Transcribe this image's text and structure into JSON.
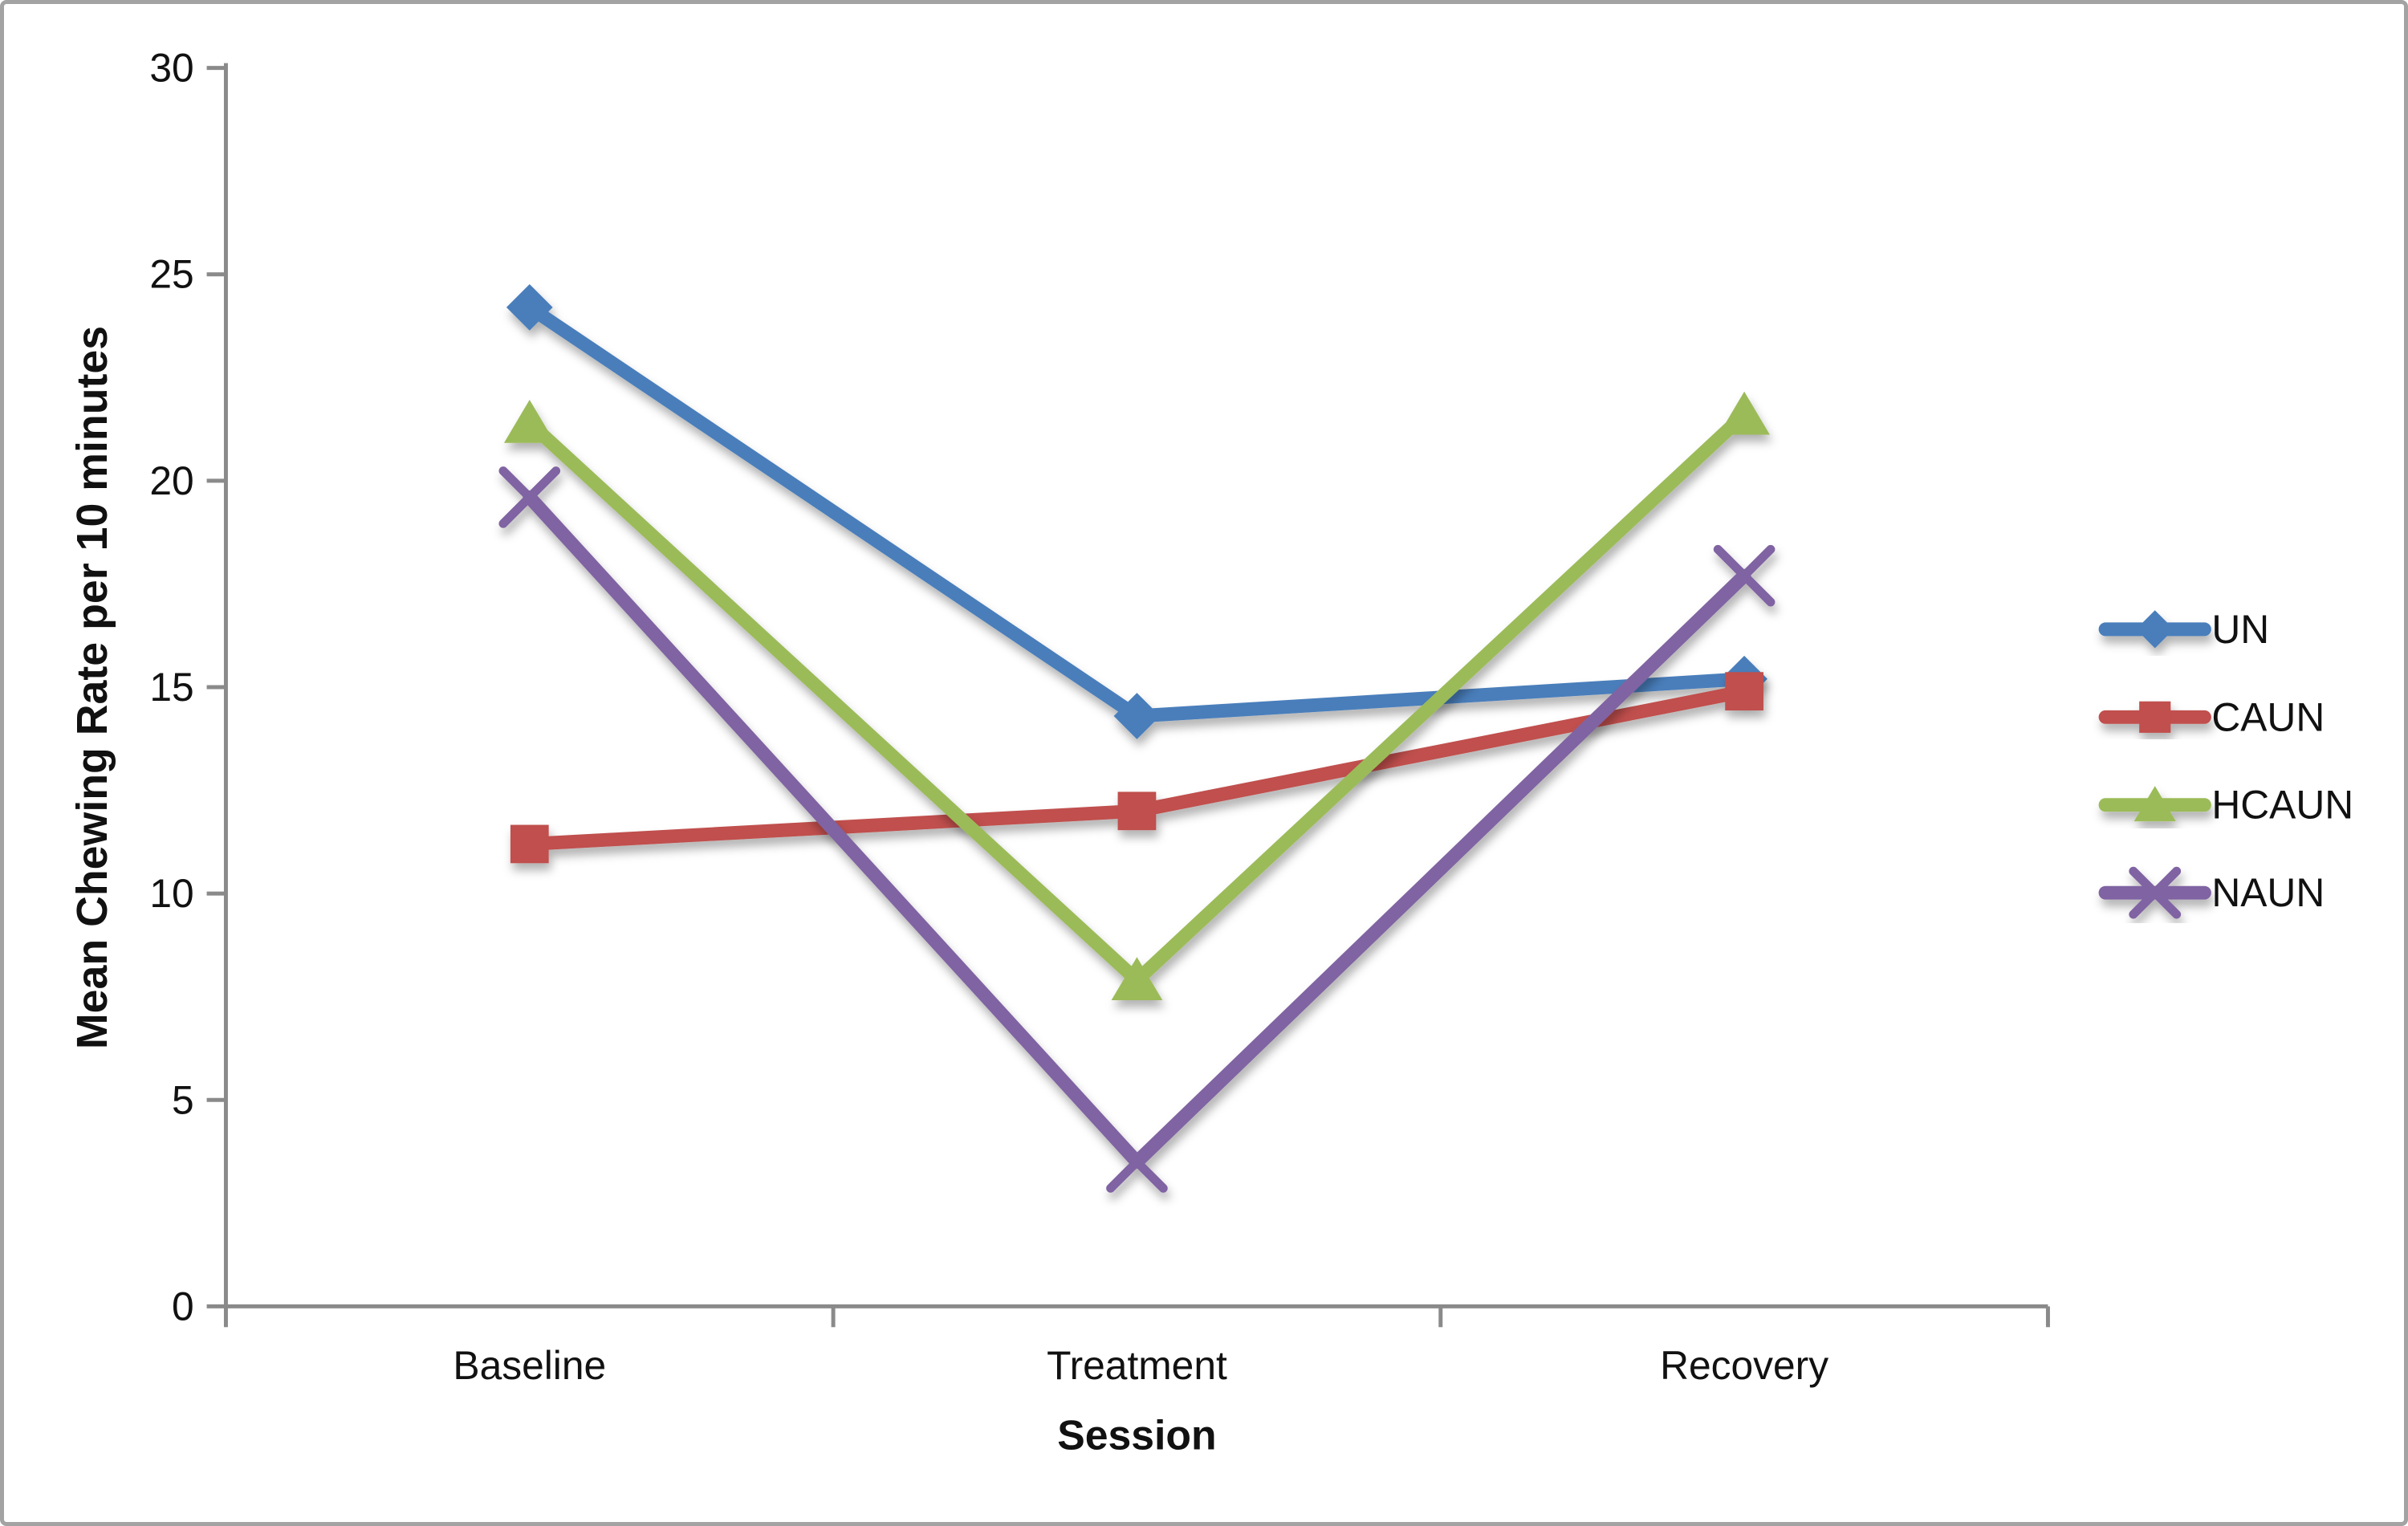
{
  "figure": {
    "description": "Line chart of mean chewing rate across sessions for four conditions",
    "background_color": "#ffffff",
    "border_color": "#a3a3a3",
    "axis_color": "#8a8a8a",
    "text_color": "#111111"
  },
  "chart_data": {
    "type": "line",
    "title": "",
    "xlabel": "Session",
    "ylabel": "Mean Chewing Rate per 10 minutes",
    "categories": [
      "Baseline",
      "Treatment",
      "Recovery"
    ],
    "series": [
      {
        "name": "UN",
        "color": "#4a7ebb",
        "marker": "diamond",
        "values": [
          24.2,
          14.3,
          15.2
        ]
      },
      {
        "name": "CAUN",
        "color": "#c0504d",
        "marker": "square",
        "values": [
          11.2,
          12.0,
          14.9
        ]
      },
      {
        "name": "HCAUN",
        "color": "#9bbb59",
        "marker": "triangle",
        "values": [
          21.4,
          7.9,
          21.6
        ]
      },
      {
        "name": "NAUN",
        "color": "#8064a2",
        "marker": "x",
        "values": [
          19.6,
          3.5,
          17.7
        ]
      }
    ],
    "ylim": [
      0,
      30
    ],
    "ytick_step": 5,
    "ytick_labels": [
      "0",
      "5",
      "10",
      "15",
      "20",
      "25",
      "30"
    ],
    "grid": false,
    "legend_position": "right"
  }
}
